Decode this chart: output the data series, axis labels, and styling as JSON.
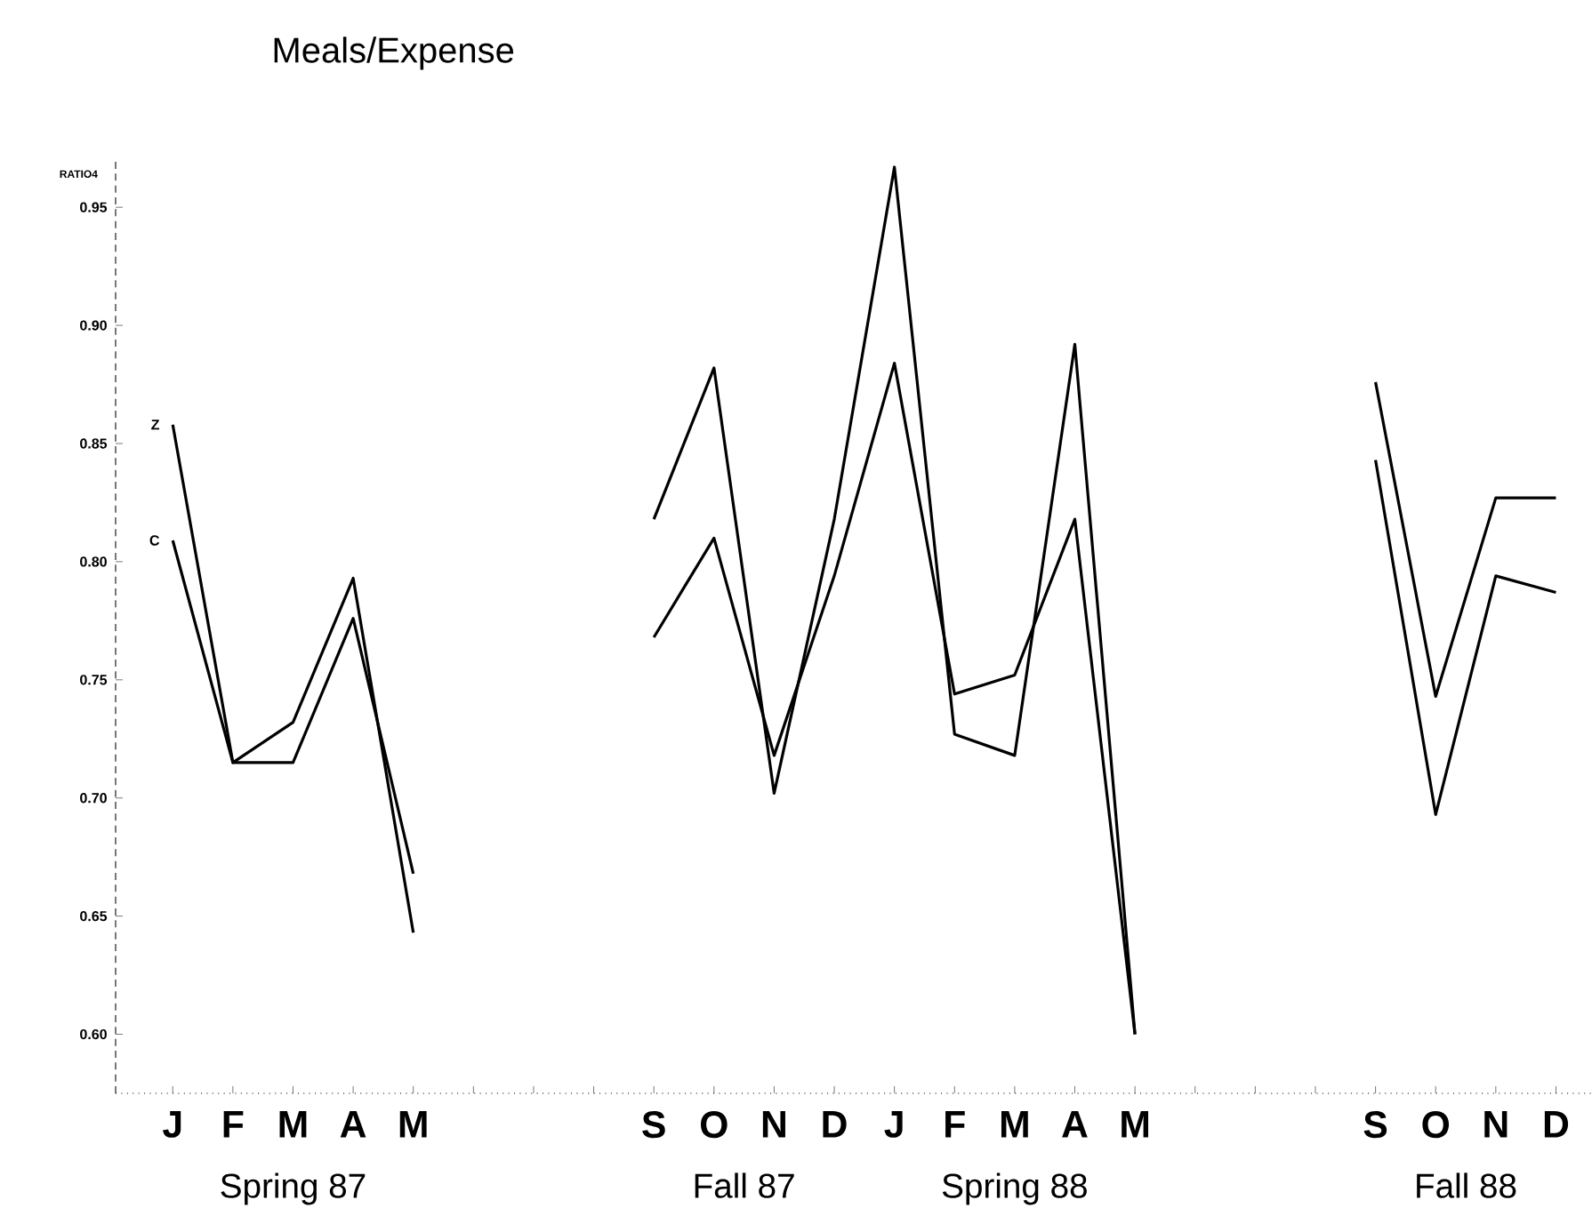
{
  "chart_data": {
    "type": "line",
    "title": "Meals/Expense",
    "ylabel": "RATIO4",
    "categories": [
      "J",
      "F",
      "M",
      "A",
      "M",
      null,
      null,
      null,
      "S",
      "O",
      "N",
      "D",
      "J",
      "F",
      "M",
      "A",
      "M",
      null,
      null,
      null,
      "S",
      "O",
      "N",
      "D"
    ],
    "series": [
      {
        "name": "Z",
        "color": "#000000",
        "values": [
          0.858,
          0.715,
          0.732,
          0.793,
          0.643,
          null,
          null,
          null,
          0.818,
          0.882,
          0.702,
          0.818,
          0.967,
          0.727,
          0.718,
          0.892,
          0.6,
          null,
          null,
          null,
          0.876,
          0.743,
          0.827,
          0.827
        ]
      },
      {
        "name": "C",
        "color": "#000000",
        "values": [
          0.809,
          0.715,
          0.715,
          0.776,
          0.668,
          null,
          null,
          null,
          0.768,
          0.81,
          0.718,
          0.794,
          0.884,
          0.744,
          0.752,
          0.818,
          0.6,
          null,
          null,
          null,
          0.843,
          0.693,
          0.794,
          0.787
        ]
      }
    ],
    "ylim": [
      0.575,
      0.97
    ],
    "yticks": [
      {
        "value": 0.6,
        "label": "0.60"
      },
      {
        "value": 0.65,
        "label": "0.65"
      },
      {
        "value": 0.7,
        "label": "0.70"
      },
      {
        "value": 0.75,
        "label": "0.75"
      },
      {
        "value": 0.8,
        "label": "0.80"
      },
      {
        "value": 0.85,
        "label": "0.85"
      },
      {
        "value": 0.9,
        "label": "0.90"
      },
      {
        "value": 0.95,
        "label": "0.95"
      }
    ],
    "grid": false,
    "legend": false,
    "line_style": "solid",
    "annotations": [
      "Spring 87",
      "Fall 87",
      "Spring 88",
      "Fall 88"
    ]
  }
}
